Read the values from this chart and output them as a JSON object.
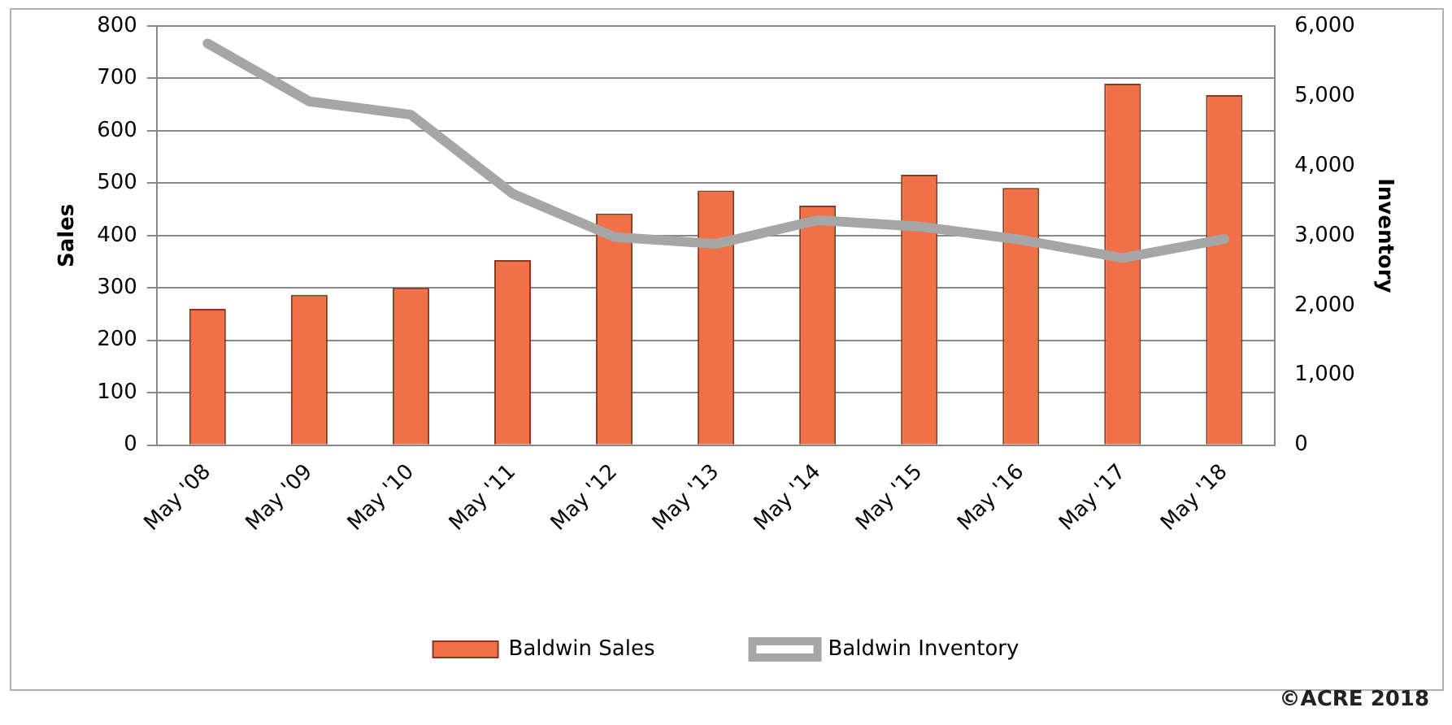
{
  "chart_data": {
    "type": "bar",
    "categories": [
      "May '08",
      "May '09",
      "May '10",
      "May '11",
      "May '12",
      "May '13",
      "May '14",
      "May '15",
      "May '16",
      "May '17",
      "May '18"
    ],
    "series": [
      {
        "name": "Baldwin Sales",
        "color": "#f07048",
        "values": [
          260,
          287,
          300,
          353,
          442,
          486,
          457,
          516,
          491,
          690,
          668
        ]
      },
      {
        "name": "Baldwin Inventory",
        "type": "line",
        "axis": "y2",
        "color": "#a6a6a6",
        "values": [
          5750,
          4920,
          4730,
          3600,
          2980,
          2880,
          3220,
          3130,
          2940,
          2680,
          2950
        ]
      }
    ],
    "ylabel": "Sales",
    "y2label": "Inventory",
    "ylim": [
      0,
      800
    ],
    "yticks": [
      0,
      100,
      200,
      300,
      400,
      500,
      600,
      700,
      800
    ],
    "y2lim": [
      0,
      6000
    ],
    "y2ticks": [
      {
        "value": 0,
        "label": "0"
      },
      {
        "value": 1000,
        "label": "1,000"
      },
      {
        "value": 2000,
        "label": "2,000"
      },
      {
        "value": 3000,
        "label": "3,000"
      },
      {
        "value": 4000,
        "label": "4,000"
      },
      {
        "value": 5000,
        "label": "5,000"
      },
      {
        "value": 6000,
        "label": "6,000"
      }
    ],
    "grid": "y",
    "legend": "bottom",
    "marker": "none",
    "annotations": [
      "©ACRE 2018"
    ]
  }
}
